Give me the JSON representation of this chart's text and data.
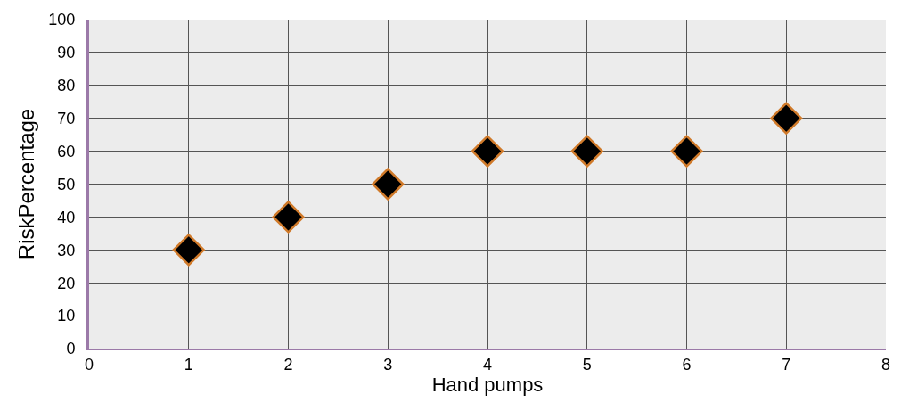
{
  "chart_data": {
    "type": "scatter",
    "xlabel": "Hand pumps",
    "ylabel": "RiskPercentage",
    "x": [
      1,
      2,
      3,
      4,
      5,
      6,
      7
    ],
    "values": [
      30,
      40,
      50,
      60,
      60,
      60,
      70
    ],
    "color": "#000000",
    "marker": "diamond",
    "xlim": [
      0,
      8
    ],
    "xticks": [
      0,
      1,
      2,
      3,
      4,
      5,
      6,
      7,
      8
    ],
    "ylim": [
      0,
      100
    ],
    "yticks": [
      0,
      10,
      20,
      30,
      40,
      50,
      60,
      70,
      80,
      90,
      100
    ],
    "grid": true
  }
}
